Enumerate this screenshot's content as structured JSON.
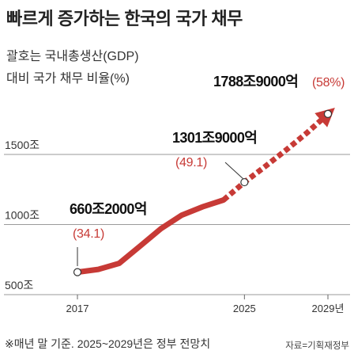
{
  "title": "빠르게 증가하는 한국의 국가 채무",
  "subtitle": "괄호는 국내총생산(GDP)\n대비 국가 채무 비율(%)",
  "footnote": "※매년 말 기준. 2025~2029년은 정부 전망치",
  "source": "자료=기획재정부",
  "colors": {
    "actual": "#c73a36",
    "projection": "#c73a36",
    "ratio_label": "#c73a36",
    "grid": "#9a9a9a"
  },
  "chart_data": {
    "type": "line",
    "title": "빠르게 증가하는 한국의 국가 채무",
    "unit": "조",
    "ylim": [
      500,
      1900
    ],
    "y_ticks": [
      {
        "value": 500,
        "label": "500조"
      },
      {
        "value": 1000,
        "label": "1000조"
      },
      {
        "value": 1500,
        "label": "1500조"
      }
    ],
    "x_ticks": [
      {
        "value": 2017,
        "label": "2017"
      },
      {
        "value": 2025,
        "label": "2025"
      },
      {
        "value": 2029,
        "label": "2029년"
      }
    ],
    "grid": true,
    "series": [
      {
        "style": "solid",
        "x": [
          2017,
          2018,
          2019,
          2020,
          2021,
          2022,
          2023,
          2024
        ],
        "y": [
          660.2,
          680.5,
          723.2,
          846.6,
          970.7,
          1067.4,
          1126.7,
          1175.0
        ]
      },
      {
        "style": "dashed",
        "x": [
          2024,
          2025,
          2026,
          2027,
          2028,
          2029
        ],
        "y": [
          1175.0,
          1301.9,
          1415.0,
          1532.0,
          1655.0,
          1788.9
        ]
      }
    ],
    "annotations": [
      {
        "x": 2017,
        "y": 660.2,
        "value_label": "660조2000억",
        "ratio_label": "(34.1)"
      },
      {
        "x": 2025,
        "y": 1301.9,
        "value_label": "1301조9000억",
        "ratio_label": "(49.1)"
      },
      {
        "x": 2029,
        "y": 1788.9,
        "value_label": "1788조9000억",
        "ratio_label": "(58%)"
      }
    ]
  }
}
